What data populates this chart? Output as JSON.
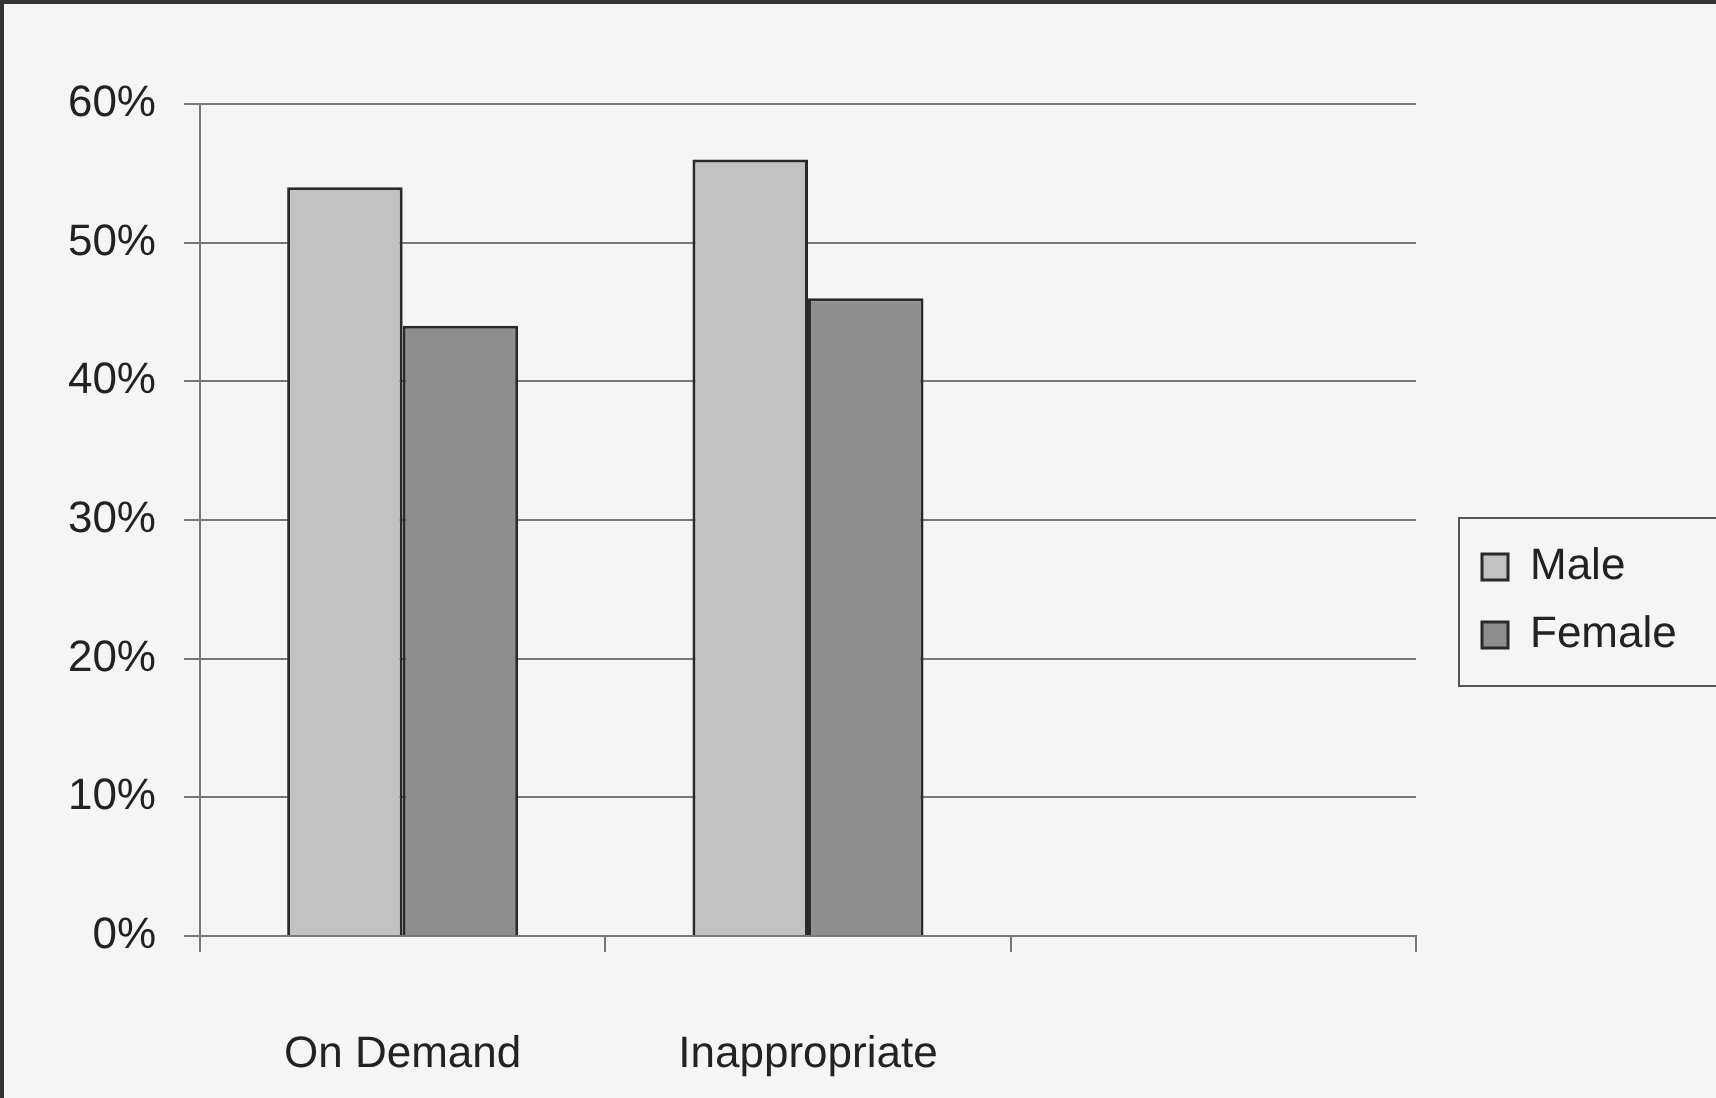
{
  "chart_data": {
    "type": "bar",
    "categories": [
      "On Demand",
      "Inappropriate",
      null
    ],
    "series": [
      {
        "name": "Male",
        "color": "#c2c2c2",
        "values": [
          54,
          56,
          null
        ]
      },
      {
        "name": "Female",
        "color": "#8e8e8e",
        "values": [
          44,
          46,
          null
        ]
      }
    ],
    "ylim": [
      0,
      60
    ],
    "yticks": [
      {
        "value": 0,
        "label": "0%"
      },
      {
        "value": 10,
        "label": "10%"
      },
      {
        "value": 20,
        "label": "20%"
      },
      {
        "value": 30,
        "label": "30%"
      },
      {
        "value": 40,
        "label": "40%"
      },
      {
        "value": 50,
        "label": "50%"
      },
      {
        "value": 60,
        "label": "60%"
      }
    ],
    "grid": "y",
    "legend": "right"
  }
}
